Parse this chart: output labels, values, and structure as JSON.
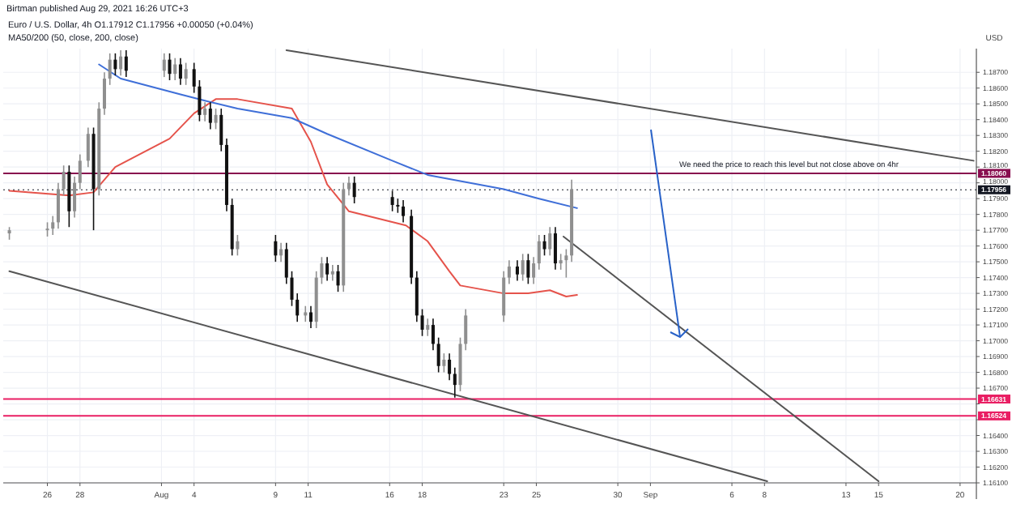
{
  "chart_data": {
    "type": "candlestick",
    "title": "Birtman published Aug 29, 2021 16:26 UTC+3",
    "subtitle": "Euro / U.S. Dollar, 4h   O1.17912 C1.17956 +0.00050 (+0.04%)",
    "ylabel": "USD",
    "annotations": [
      "MA50/200 (50, close, 200, close)",
      {
        "text": "We need the price to reach this level but not close above on 4hr",
        "x": "2021-09-09T12:00",
        "y": 1.1806
      }
    ],
    "x": [
      "2021-07-23T16:00",
      "2021-07-26T00:00",
      "2021-07-26T08:00",
      "2021-07-26T16:00",
      "2021-07-27T00:00",
      "2021-07-27T08:00",
      "2021-07-27T16:00",
      "2021-07-28T00:00",
      "2021-07-28T12:00",
      "2021-07-28T20:00",
      "2021-07-29T04:00",
      "2021-07-29T12:00",
      "2021-07-29T20:00",
      "2021-07-30T04:00",
      "2021-07-30T12:00",
      "2021-07-30T20:00",
      "2021-08-02T04:00",
      "2021-08-02T12:00",
      "2021-08-02T20:00",
      "2021-08-03T04:00",
      "2021-08-03T12:00",
      "2021-08-04T00:00",
      "2021-08-04T08:00",
      "2021-08-04T16:00",
      "2021-08-05T00:00",
      "2021-08-05T08:00",
      "2021-08-05T16:00",
      "2021-08-06T00:00",
      "2021-08-06T08:00",
      "2021-08-06T16:00",
      "2021-08-09T00:00",
      "2021-08-09T08:00",
      "2021-08-09T16:00",
      "2021-08-10T00:00",
      "2021-08-10T08:00",
      "2021-08-10T20:00",
      "2021-08-11T04:00",
      "2021-08-11T12:00",
      "2021-08-11T20:00",
      "2021-08-12T04:00",
      "2021-08-12T12:00",
      "2021-08-12T20:00",
      "2021-08-13T04:00",
      "2021-08-13T12:00",
      "2021-08-13T20:00",
      "2021-08-16T04:00",
      "2021-08-16T12:00",
      "2021-08-16T20:00",
      "2021-08-17T08:00",
      "2021-08-17T16:00",
      "2021-08-18T00:00",
      "2021-08-18T08:00",
      "2021-08-18T16:00",
      "2021-08-19T00:00",
      "2021-08-19T08:00",
      "2021-08-19T16:00",
      "2021-08-20T00:00",
      "2021-08-20T08:00",
      "2021-08-20T16:00",
      "2021-08-23T00:00",
      "2021-08-23T08:00",
      "2021-08-23T20:00",
      "2021-08-24T04:00",
      "2021-08-24T12:00",
      "2021-08-24T20:00",
      "2021-08-25T04:00",
      "2021-08-25T12:00",
      "2021-08-25T20:00",
      "2021-08-26T04:00",
      "2021-08-26T12:00",
      "2021-08-26T20:00",
      "2021-08-27T04:00"
    ],
    "ohlc": [
      [
        1.1768,
        1.1772,
        1.1764,
        1.177
      ],
      [
        1.177,
        1.1775,
        1.1766,
        1.1771
      ],
      [
        1.1771,
        1.1779,
        1.1767,
        1.1775
      ],
      [
        1.1775,
        1.18,
        1.1771,
        1.1796
      ],
      [
        1.1796,
        1.1811,
        1.1792,
        1.1807
      ],
      [
        1.1807,
        1.1811,
        1.1772,
        1.1782
      ],
      [
        1.1782,
        1.1804,
        1.1778,
        1.18
      ],
      [
        1.18,
        1.1818,
        1.1796,
        1.1814
      ],
      [
        1.1814,
        1.1835,
        1.181,
        1.1831
      ],
      [
        1.1831,
        1.1835,
        1.177,
        1.1796
      ],
      [
        1.1796,
        1.1851,
        1.1792,
        1.1847
      ],
      [
        1.1847,
        1.187,
        1.1843,
        1.1866
      ],
      [
        1.1866,
        1.1882,
        1.1862,
        1.1878
      ],
      [
        1.1878,
        1.1882,
        1.1868,
        1.1872
      ],
      [
        1.1872,
        1.1884,
        1.1868,
        1.188
      ],
      [
        1.188,
        1.1884,
        1.1867,
        1.1871
      ],
      [
        1.1871,
        1.1882,
        1.1867,
        1.1878
      ],
      [
        1.1878,
        1.1882,
        1.1865,
        1.1869
      ],
      [
        1.1869,
        1.1879,
        1.1865,
        1.1875
      ],
      [
        1.1875,
        1.1879,
        1.1862,
        1.1866
      ],
      [
        1.1866,
        1.1876,
        1.1862,
        1.1872
      ],
      [
        1.1872,
        1.1876,
        1.1857,
        1.1861
      ],
      [
        1.1861,
        1.1865,
        1.1839,
        1.1843
      ],
      [
        1.1843,
        1.1851,
        1.1839,
        1.1847
      ],
      [
        1.1847,
        1.1851,
        1.1834,
        1.1838
      ],
      [
        1.1838,
        1.1847,
        1.1834,
        1.1843
      ],
      [
        1.1843,
        1.1847,
        1.182,
        1.1824
      ],
      [
        1.1824,
        1.1828,
        1.1782,
        1.1786
      ],
      [
        1.1786,
        1.179,
        1.1754,
        1.1758
      ],
      [
        1.1758,
        1.1767,
        1.1754,
        1.1763
      ],
      [
        1.1763,
        1.1767,
        1.175,
        1.1754
      ],
      [
        1.1754,
        1.1762,
        1.175,
        1.1758
      ],
      [
        1.1758,
        1.1762,
        1.1736,
        1.174
      ],
      [
        1.174,
        1.1744,
        1.1722,
        1.1726
      ],
      [
        1.1726,
        1.173,
        1.1712,
        1.1716
      ],
      [
        1.1716,
        1.1722,
        1.1712,
        1.1718
      ],
      [
        1.1718,
        1.1722,
        1.1708,
        1.1712
      ],
      [
        1.1712,
        1.1744,
        1.1708,
        1.174
      ],
      [
        1.174,
        1.1753,
        1.1736,
        1.1749
      ],
      [
        1.1749,
        1.1753,
        1.1738,
        1.1742
      ],
      [
        1.1742,
        1.1748,
        1.1738,
        1.1744
      ],
      [
        1.1744,
        1.1748,
        1.1731,
        1.1735
      ],
      [
        1.1735,
        1.18,
        1.1731,
        1.1796
      ],
      [
        1.1796,
        1.1804,
        1.1792,
        1.18
      ],
      [
        1.18,
        1.1804,
        1.1787,
        1.1791
      ],
      [
        1.1791,
        1.1795,
        1.1782,
        1.1786
      ],
      [
        1.1786,
        1.179,
        1.1781,
        1.1785
      ],
      [
        1.1785,
        1.1789,
        1.1775,
        1.1779
      ],
      [
        1.1779,
        1.1783,
        1.1736,
        1.174
      ],
      [
        1.174,
        1.1744,
        1.1712,
        1.1716
      ],
      [
        1.1716,
        1.172,
        1.1703,
        1.1707
      ],
      [
        1.1707,
        1.1714,
        1.1703,
        1.171
      ],
      [
        1.171,
        1.1714,
        1.1694,
        1.1698
      ],
      [
        1.1698,
        1.1702,
        1.168,
        1.1684
      ],
      [
        1.1684,
        1.1692,
        1.168,
        1.1688
      ],
      [
        1.1688,
        1.1692,
        1.1675,
        1.1679
      ],
      [
        1.1679,
        1.1683,
        1.1664,
        1.1672
      ],
      [
        1.1672,
        1.1702,
        1.1668,
        1.1698
      ],
      [
        1.1698,
        1.172,
        1.1694,
        1.1716
      ],
      [
        1.1716,
        1.1744,
        1.1712,
        1.174
      ],
      [
        1.174,
        1.1751,
        1.1736,
        1.1747
      ],
      [
        1.1747,
        1.1751,
        1.1738,
        1.1742
      ],
      [
        1.1742,
        1.1755,
        1.1738,
        1.1751
      ],
      [
        1.1751,
        1.1755,
        1.1736,
        1.174
      ],
      [
        1.174,
        1.1753,
        1.1736,
        1.1749
      ],
      [
        1.1749,
        1.1767,
        1.1745,
        1.1763
      ],
      [
        1.1763,
        1.1767,
        1.1754,
        1.1758
      ],
      [
        1.1758,
        1.1772,
        1.1754,
        1.1768
      ],
      [
        1.1768,
        1.1772,
        1.1745,
        1.1749
      ],
      [
        1.1749,
        1.1755,
        1.1745,
        1.1751
      ],
      [
        1.1751,
        1.1758,
        1.174,
        1.1754
      ],
      [
        1.1754,
        1.1802,
        1.175,
        1.1796
      ]
    ],
    "series": [
      {
        "type": "line",
        "color": "#e5534b",
        "x": [
          "2021-07-23T16:00",
          "2021-07-27T08:00",
          "2021-07-28T20:00",
          "2021-07-30T04:00",
          "2021-08-02T12:00",
          "2021-08-04T00:00",
          "2021-08-05T08:00",
          "2021-08-06T16:00",
          "2021-08-10T00:00",
          "2021-08-11T04:00",
          "2021-08-12T04:00",
          "2021-08-13T12:00",
          "2021-08-17T00:00",
          "2021-08-18T08:00",
          "2021-08-19T16:00",
          "2021-08-20T08:00",
          "2021-08-23T00:00",
          "2021-08-24T12:00",
          "2021-08-25T20:00",
          "2021-08-26T20:00",
          "2021-08-27T12:00"
        ],
        "values": [
          1.1795,
          1.1792,
          1.1794,
          1.181,
          1.1828,
          1.1844,
          1.1853,
          1.1853,
          1.1847,
          1.1826,
          1.1799,
          1.1782,
          1.1773,
          1.1763,
          1.1744,
          1.1735,
          1.173,
          1.173,
          1.1732,
          1.1728,
          1.1729
        ]
      },
      {
        "type": "line",
        "color": "#3f6fd8",
        "x": [
          "2021-07-29T04:00",
          "2021-07-30T12:00",
          "2021-08-03T04:00",
          "2021-08-04T16:00",
          "2021-08-06T16:00",
          "2021-08-10T00:00",
          "2021-08-12T04:00",
          "2021-08-16T04:00",
          "2021-08-18T08:00",
          "2021-08-23T00:00",
          "2021-08-25T04:00",
          "2021-08-27T12:00"
        ],
        "values": [
          1.1875,
          1.1866,
          1.1856,
          1.1852,
          1.1847,
          1.1841,
          1.1831,
          1.1814,
          1.1805,
          1.1796,
          1.179,
          1.1784
        ]
      },
      {
        "type": "line",
        "color": "#555555",
        "x": [
          "2021-08-09T16:00",
          "2021-09-20T20:00"
        ],
        "values": [
          1.1884,
          1.1814
        ]
      },
      {
        "type": "line",
        "color": "#555555",
        "x": [
          "2021-07-23T16:00",
          "2021-09-08T04:00"
        ],
        "values": [
          1.1744,
          1.1611
        ]
      },
      {
        "type": "line",
        "color": "#555555",
        "x": [
          "2021-08-26T16:00",
          "2021-09-15T00:00"
        ],
        "values": [
          1.1766,
          1.1611
        ]
      }
    ],
    "ref_lines": [
      {
        "axis": "y",
        "value": 1.1806,
        "label": "1.18060",
        "color": "#880e4f"
      },
      {
        "axis": "y",
        "value": 1.16631,
        "label": "1.16631",
        "color": "#e91e63"
      },
      {
        "axis": "y",
        "value": 1.16524,
        "label": "1.16524",
        "color": "#e91e63"
      },
      {
        "axis": "y",
        "value": 1.17956,
        "label": "1.17956",
        "color": "#131722",
        "line_style": "dotted"
      }
    ],
    "xlim": [
      "2021-07-23T07:00",
      "2021-09-21T00:00"
    ],
    "xticks": [
      {
        "value": "2021-07-26",
        "label": "26"
      },
      {
        "value": "2021-07-28",
        "label": "28"
      },
      {
        "value": "2021-08-02",
        "label": "Aug"
      },
      {
        "value": "2021-08-04",
        "label": "4"
      },
      {
        "value": "2021-08-09",
        "label": "9"
      },
      {
        "value": "2021-08-11",
        "label": "11"
      },
      {
        "value": "2021-08-16",
        "label": "16"
      },
      {
        "value": "2021-08-18",
        "label": "18"
      },
      {
        "value": "2021-08-23",
        "label": "23"
      },
      {
        "value": "2021-08-25",
        "label": "25"
      },
      {
        "value": "2021-08-30",
        "label": "30"
      },
      {
        "value": "2021-09-01",
        "label": "Sep"
      },
      {
        "value": "2021-09-06",
        "label": "6"
      },
      {
        "value": "2021-09-08",
        "label": "8"
      },
      {
        "value": "2021-09-13",
        "label": "13"
      },
      {
        "value": "2021-09-15",
        "label": "15"
      },
      {
        "value": "2021-09-20",
        "label": "20"
      }
    ],
    "ylim": [
      1.161,
      1.1885
    ],
    "yticks": [
      {
        "value": 1.161,
        "label": "1.16100"
      },
      {
        "value": 1.162,
        "label": "1.16200"
      },
      {
        "value": 1.163,
        "label": "1.16300"
      },
      {
        "value": 1.164,
        "label": "1.16400"
      },
      {
        "value": 1.165,
        "label": null
      },
      {
        "value": 1.166,
        "label": null
      },
      {
        "value": 1.167,
        "label": "1.16700"
      },
      {
        "value": 1.168,
        "label": "1.16800"
      },
      {
        "value": 1.169,
        "label": "1.16900"
      },
      {
        "value": 1.17,
        "label": "1.17000"
      },
      {
        "value": 1.171,
        "label": "1.17100"
      },
      {
        "value": 1.172,
        "label": "1.17200"
      },
      {
        "value": 1.173,
        "label": "1.17300"
      },
      {
        "value": 1.174,
        "label": "1.17400"
      },
      {
        "value": 1.175,
        "label": "1.17500"
      },
      {
        "value": 1.176,
        "label": "1.17600"
      },
      {
        "value": 1.177,
        "label": "1.17700"
      },
      {
        "value": 1.178,
        "label": "1.17800"
      },
      {
        "value": 1.179,
        "label": "1.17900"
      },
      {
        "value": 1.18,
        "label": "1.18000"
      },
      {
        "value": 1.181,
        "label": "1.18100"
      },
      {
        "value": 1.182,
        "label": "1.18200"
      },
      {
        "value": 1.183,
        "label": "1.18300"
      },
      {
        "value": 1.184,
        "label": "1.18400"
      },
      {
        "value": 1.185,
        "label": "1.18500"
      },
      {
        "value": 1.186,
        "label": "1.18600"
      },
      {
        "value": 1.187,
        "label": "1.18700"
      }
    ],
    "grid": true
  }
}
